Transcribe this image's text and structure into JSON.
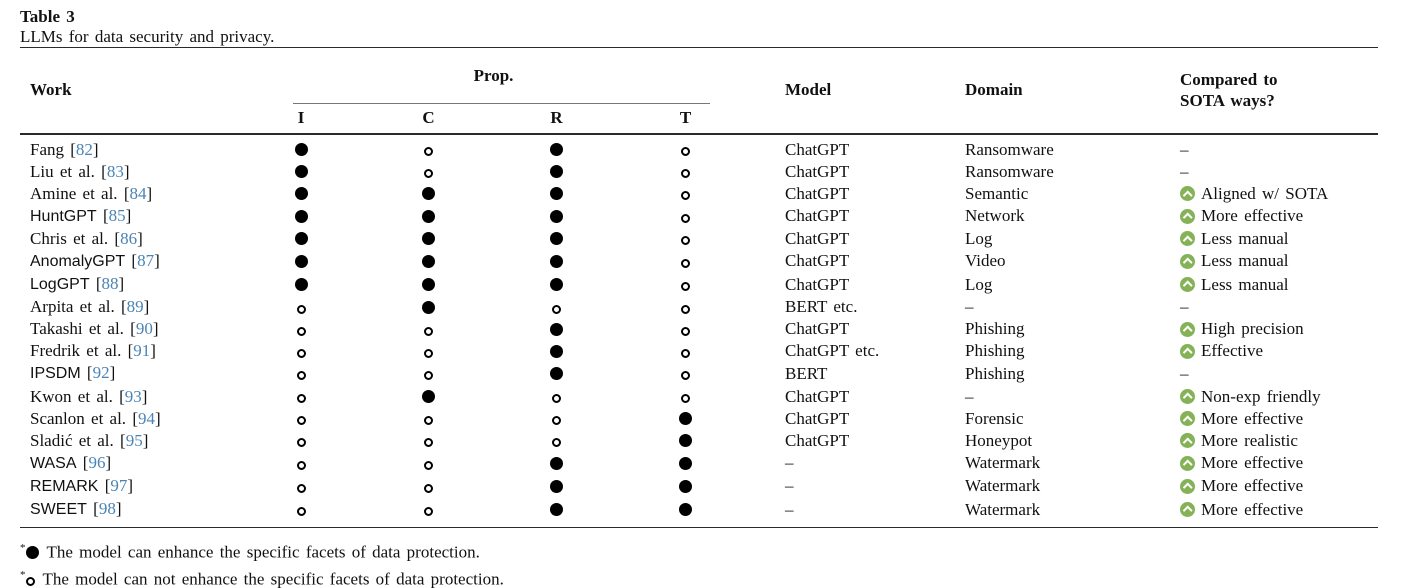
{
  "title": "Table 3",
  "caption": "LLMs for data security and privacy.",
  "header": {
    "work": "Work",
    "prop_group": "Prop.",
    "prop_subs": [
      "I",
      "C",
      "R",
      "T"
    ],
    "model": "Model",
    "domain": "Domain",
    "compared_line1": "Compared to",
    "compared_line2": "SOTA ways?"
  },
  "colors": {
    "citation_blue": "#4a84b4",
    "improve_green": "#85b257"
  },
  "rows": [
    {
      "work": "Fang",
      "ref": "82",
      "style": "serif",
      "props": [
        "filled",
        "open",
        "filled",
        "open"
      ],
      "model": "ChatGPT",
      "domain": "Ransomware",
      "compared": {
        "up": false,
        "text": "–"
      }
    },
    {
      "work": "Liu et al.",
      "ref": "83",
      "style": "serif",
      "props": [
        "filled",
        "open",
        "filled",
        "open"
      ],
      "model": "ChatGPT",
      "domain": "Ransomware",
      "compared": {
        "up": false,
        "text": "–"
      }
    },
    {
      "work": "Amine et al.",
      "ref": "84",
      "style": "serif",
      "props": [
        "filled",
        "filled",
        "filled",
        "open"
      ],
      "model": "ChatGPT",
      "domain": "Semantic",
      "compared": {
        "up": true,
        "text": "Aligned w/ SOTA"
      }
    },
    {
      "work": "HuntGPT",
      "ref": "85",
      "style": "sans",
      "props": [
        "filled",
        "filled",
        "filled",
        "open"
      ],
      "model": "ChatGPT",
      "domain": "Network",
      "compared": {
        "up": true,
        "text": "More effective"
      }
    },
    {
      "work": "Chris et al.",
      "ref": "86",
      "style": "serif",
      "props": [
        "filled",
        "filled",
        "filled",
        "open"
      ],
      "model": "ChatGPT",
      "domain": "Log",
      "compared": {
        "up": true,
        "text": "Less manual"
      }
    },
    {
      "work": "AnomalyGPT",
      "ref": "87",
      "style": "sans",
      "props": [
        "filled",
        "filled",
        "filled",
        "open"
      ],
      "model": "ChatGPT",
      "domain": "Video",
      "compared": {
        "up": true,
        "text": "Less manual"
      }
    },
    {
      "work": "LogGPT",
      "ref": "88",
      "style": "sans",
      "props": [
        "filled",
        "filled",
        "filled",
        "open"
      ],
      "model": "ChatGPT",
      "domain": "Log",
      "compared": {
        "up": true,
        "text": "Less manual"
      }
    },
    {
      "work": "Arpita et al.",
      "ref": "89",
      "style": "serif",
      "props": [
        "open",
        "filled",
        "open",
        "open"
      ],
      "model": "BERT etc.",
      "domain": "–",
      "compared": {
        "up": false,
        "text": "–"
      }
    },
    {
      "work": "Takashi et al.",
      "ref": "90",
      "style": "serif",
      "props": [
        "open",
        "open",
        "filled",
        "open"
      ],
      "model": "ChatGPT",
      "domain": "Phishing",
      "compared": {
        "up": true,
        "text": "High precision"
      }
    },
    {
      "work": "Fredrik et al.",
      "ref": "91",
      "style": "serif",
      "props": [
        "open",
        "open",
        "filled",
        "open"
      ],
      "model": "ChatGPT etc.",
      "domain": "Phishing",
      "compared": {
        "up": true,
        "text": "Effective"
      }
    },
    {
      "work": "IPSDM",
      "ref": "92",
      "style": "sans",
      "props": [
        "open",
        "open",
        "filled",
        "open"
      ],
      "model": "BERT",
      "domain": "Phishing",
      "compared": {
        "up": false,
        "text": "–"
      }
    },
    {
      "work": "Kwon et al.",
      "ref": "93",
      "style": "serif",
      "props": [
        "open",
        "filled",
        "open",
        "open"
      ],
      "model": "ChatGPT",
      "domain": "–",
      "compared": {
        "up": true,
        "text": "Non-exp friendly"
      }
    },
    {
      "work": "Scanlon et al.",
      "ref": "94",
      "style": "serif",
      "props": [
        "open",
        "open",
        "open",
        "filled"
      ],
      "model": "ChatGPT",
      "domain": "Forensic",
      "compared": {
        "up": true,
        "text": "More effective"
      }
    },
    {
      "work": "Sladić et al.",
      "ref": "95",
      "style": "serif",
      "props": [
        "open",
        "open",
        "open",
        "filled"
      ],
      "model": "ChatGPT",
      "domain": "Honeypot",
      "compared": {
        "up": true,
        "text": "More realistic"
      }
    },
    {
      "work": "WASA",
      "ref": "96",
      "style": "sans",
      "props": [
        "open",
        "open",
        "filled",
        "filled"
      ],
      "model": "–",
      "domain": "Watermark",
      "compared": {
        "up": true,
        "text": "More effective"
      }
    },
    {
      "work": "REMARK",
      "ref": "97",
      "style": "sans",
      "props": [
        "open",
        "open",
        "filled",
        "filled"
      ],
      "model": "–",
      "domain": "Watermark",
      "compared": {
        "up": true,
        "text": "More effective"
      }
    },
    {
      "work": "SWEET",
      "ref": "98",
      "style": "sans",
      "props": [
        "open",
        "open",
        "filled",
        "filled"
      ],
      "model": "–",
      "domain": "Watermark",
      "compared": {
        "up": true,
        "text": "More effective"
      }
    }
  ],
  "legend": {
    "filled_marker": "*",
    "filled": "The model can enhance the specific facets of data protection.",
    "open_marker": "*",
    "open": "The model can not enhance the specific facets of data protection."
  }
}
